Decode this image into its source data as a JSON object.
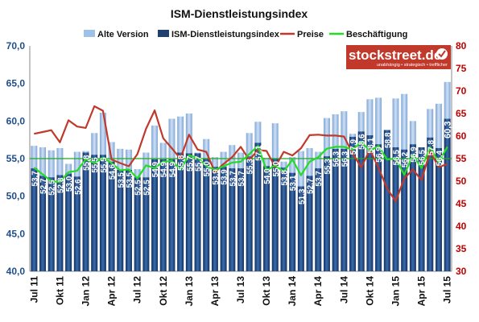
{
  "chart_data": {
    "type": "bar",
    "title": "ISM-Dienstleistungsindex",
    "legend": {
      "position": "top",
      "entries": [
        {
          "label": "Alte Version",
          "color": "#9fc1e8",
          "kind": "bar"
        },
        {
          "label": "ISM-Dienstleistungsindex",
          "color": "#1f3f73",
          "kind": "bar"
        },
        {
          "label": "Preise",
          "color": "#c0392b",
          "kind": "line"
        },
        {
          "label": "Beschäftigung",
          "color": "#22dd22",
          "kind": "line"
        }
      ]
    },
    "y_left": {
      "min": 40,
      "max": 70,
      "step": 5,
      "tick_labels": [
        "40,0",
        "45,0",
        "50,0",
        "55,0",
        "60,0",
        "65,0",
        "70,0"
      ],
      "color": "#1f4e8c"
    },
    "y_right": {
      "min": 30,
      "max": 80,
      "step": 5,
      "tick_labels": [
        "30",
        "35",
        "40",
        "45",
        "50",
        "55",
        "60",
        "65",
        "70",
        "75",
        "80"
      ],
      "color": "#c00000"
    },
    "grid": false,
    "x_tick_labels": [
      {
        "index": 0,
        "label": "Jul 11"
      },
      {
        "index": 3,
        "label": "Okt 11"
      },
      {
        "index": 6,
        "label": "Jan 12"
      },
      {
        "index": 9,
        "label": "Apr 12"
      },
      {
        "index": 12,
        "label": "Jul 12"
      },
      {
        "index": 15,
        "label": "Okt 12"
      },
      {
        "index": 18,
        "label": "Jan 13"
      },
      {
        "index": 21,
        "label": "Apr 13"
      },
      {
        "index": 24,
        "label": "Jul 13"
      },
      {
        "index": 27,
        "label": "Okt 13"
      },
      {
        "index": 30,
        "label": "Jan 14"
      },
      {
        "index": 33,
        "label": "Apr 14"
      },
      {
        "index": 36,
        "label": "Jul 14"
      },
      {
        "index": 39,
        "label": "Okt 14"
      },
      {
        "index": 42,
        "label": "Jan 15"
      },
      {
        "index": 45,
        "label": "Apr 15"
      },
      {
        "index": 48,
        "label": "Jul 15"
      }
    ],
    "series": [
      {
        "name": "ISM-Dienstleistungsindex",
        "axis": "left",
        "values": [
          53.7,
          52.7,
          52.5,
          52.8,
          53.0,
          52.6,
          55.8,
          55.5,
          55.5,
          54.6,
          53.5,
          53.5,
          52.5,
          52.5,
          54.9,
          54.9,
          54.9,
          55.8,
          55.7,
          55.7,
          55.0,
          53.9,
          53.9,
          53.7,
          53.7,
          55.3,
          57.1,
          54.0,
          55.0,
          53.8,
          53.1,
          51.3,
          52.7,
          53.7,
          55.3,
          56.3,
          56.3,
          57.9,
          58.6,
          58.1,
          56.9,
          58.8,
          56.5,
          56.2,
          56.9,
          56.5,
          57.8,
          56.4,
          60.3
        ],
        "labels": [
          "53,7",
          "52,7",
          "52,5",
          "52,8",
          "53,0",
          "52,6",
          "55,8",
          "55,5",
          "55,5",
          "54,6",
          "53,5",
          "53,5",
          "52,5",
          "52,5",
          "54,9",
          "54,9",
          "54,9",
          "55,8",
          "55,7",
          "55,7",
          "55,0",
          "53,9",
          "53,9",
          "53,7",
          "53,7",
          "55,3",
          "57,1",
          "54,0",
          "55,0",
          "53,8",
          "53,1",
          "51,3",
          "52,7",
          "53,7",
          "55,3",
          "56,3",
          "56,3",
          "57,9",
          "58,6",
          "58,1",
          "56,9",
          "58,8",
          "56,5",
          "56,2",
          "56,9",
          "56,5",
          "57,8",
          "56,4",
          "60,3"
        ]
      },
      {
        "name": "Alte Version",
        "axis": "left",
        "values": [
          56.7,
          56.5,
          56.1,
          56.4,
          54.3,
          55.9,
          56.0,
          58.4,
          61.1,
          57.2,
          56.3,
          56.2,
          53.6,
          55.8,
          59.4,
          57.1,
          60.3,
          60.6,
          61.0,
          55.8,
          57.6,
          55.2,
          55.9,
          56.8,
          55.8,
          58.4,
          59.9,
          55.1,
          59.7,
          54.6,
          55.2,
          56.0,
          56.4,
          55.9,
          60.4,
          60.9,
          61.3,
          58.3,
          61.2,
          62.9,
          63.1,
          58.8,
          63.0,
          63.6,
          60.0,
          56.0,
          61.6,
          62.3,
          65.2
        ]
      },
      {
        "name": "Preise",
        "axis": "right",
        "values": [
          60.5,
          60.9,
          61.3,
          58.6,
          63.5,
          62.1,
          61.8,
          66.6,
          65.6,
          54.8,
          54.0,
          53.3,
          56.0,
          61.6,
          65.7,
          59.5,
          57.3,
          55.0,
          60.3,
          57.0,
          56.5,
          52.0,
          53.8,
          55.3,
          57.6,
          54.7,
          56.9,
          56.7,
          53.1,
          56.5,
          55.7,
          57.3,
          60.2,
          60.3,
          60.1,
          60.1,
          59.9,
          56.2,
          53.0,
          57.0,
          53.0,
          48.4,
          45.5,
          50.6,
          52.6,
          50.2,
          56.6,
          53.1,
          53.8
        ]
      },
      {
        "name": "Beschäftigung",
        "axis": "right",
        "values": [
          53.0,
          51.5,
          50.0,
          49.8,
          52.0,
          52.3,
          54.9,
          54.0,
          55.2,
          54.0,
          52.4,
          52.6,
          50.6,
          53.5,
          52.9,
          54.3,
          54.5,
          52.6,
          55.7,
          55.2,
          53.4,
          52.5,
          53.3,
          54.1,
          54.3,
          56.0,
          57.8,
          52.4,
          53.5,
          52.1,
          54.8,
          51.3,
          54.3,
          55.3,
          57.2,
          57.6,
          57.6,
          57.0,
          58.7,
          56.7,
          57.8,
          54.8,
          55.0,
          51.4,
          55.8,
          52.9,
          57.5,
          54.2,
          57.6
        ]
      }
    ]
  },
  "watermark": {
    "brand": "stockstreet.de",
    "tagline": "unabhängig • strategisch • trefflicher",
    "bg_color": "#c0392b"
  }
}
